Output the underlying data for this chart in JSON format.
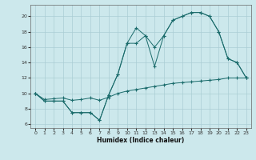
{
  "xlabel": "Humidex (Indice chaleur)",
  "xlim": [
    -0.5,
    23.5
  ],
  "ylim": [
    5.5,
    21.5
  ],
  "xticks": [
    0,
    1,
    2,
    3,
    4,
    5,
    6,
    7,
    8,
    9,
    10,
    11,
    12,
    13,
    14,
    15,
    16,
    17,
    18,
    19,
    20,
    21,
    22,
    23
  ],
  "yticks": [
    6,
    8,
    10,
    12,
    14,
    16,
    18,
    20
  ],
  "bg_color": "#cce8ec",
  "grid_color": "#aacdd4",
  "line_color": "#1a6b6b",
  "line1_x": [
    0,
    1,
    2,
    3,
    4,
    5,
    6,
    7,
    8,
    9,
    10,
    11,
    12,
    13,
    14,
    15,
    16,
    17,
    18,
    19,
    20,
    21,
    22,
    23
  ],
  "line1_y": [
    10.0,
    9.0,
    9.0,
    9.0,
    7.5,
    7.5,
    7.5,
    6.5,
    9.8,
    12.5,
    16.5,
    16.5,
    17.5,
    13.5,
    17.5,
    19.5,
    20.0,
    20.5,
    20.5,
    20.0,
    18.0,
    14.5,
    14.0,
    12.0
  ],
  "line2_x": [
    0,
    1,
    2,
    3,
    4,
    5,
    6,
    7,
    8,
    9,
    10,
    11,
    12,
    13,
    14,
    15,
    16,
    17,
    18,
    19,
    20,
    21,
    22,
    23
  ],
  "line2_y": [
    10.0,
    9.0,
    9.0,
    9.0,
    7.5,
    7.5,
    7.5,
    6.5,
    9.8,
    12.5,
    16.5,
    18.5,
    17.5,
    16.0,
    17.5,
    19.5,
    20.0,
    20.5,
    20.5,
    20.0,
    18.0,
    14.5,
    14.0,
    12.0
  ],
  "line3_x": [
    0,
    1,
    2,
    3,
    4,
    5,
    6,
    7,
    8,
    9,
    10,
    11,
    12,
    13,
    14,
    15,
    16,
    17,
    18,
    19,
    20,
    21,
    22,
    23
  ],
  "line3_y": [
    10.0,
    9.2,
    9.3,
    9.4,
    9.1,
    9.2,
    9.4,
    9.1,
    9.5,
    10.0,
    10.3,
    10.5,
    10.7,
    10.9,
    11.1,
    11.3,
    11.4,
    11.5,
    11.6,
    11.7,
    11.8,
    12.0,
    12.0,
    12.0
  ]
}
